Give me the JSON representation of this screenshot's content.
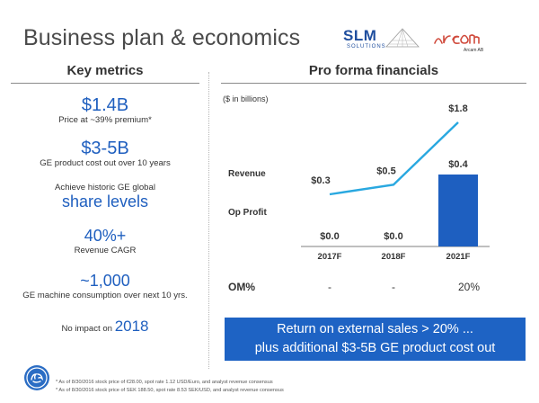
{
  "title": "Business plan & economics",
  "logos": {
    "slm": "SLM",
    "slm_sub": "SOLUTIONS",
    "arcam_sub": "Arcam AB"
  },
  "left_panel": {
    "heading": "Key metrics",
    "metrics": [
      {
        "value": "$1.4B",
        "caption": "Price at ~39% premium*"
      },
      {
        "value": "$3-5B",
        "caption": "GE product cost out over 10 years"
      },
      {
        "caption_top": "Achieve historic GE global",
        "value": "share levels"
      },
      {
        "value": "40%+",
        "caption": "Revenue CAGR"
      },
      {
        "value": "~1,000",
        "caption": "GE machine consumption over next 10 yrs."
      },
      {
        "prefix": "No impact on ",
        "value": "2018"
      }
    ]
  },
  "right_panel": {
    "heading": "Pro forma financials",
    "unit_note": "($ in billions)",
    "om_label": "OM%",
    "om_values": [
      "-",
      "-",
      "20%"
    ],
    "callout_line1": "Return on external sales > 20% ...",
    "callout_line2": "plus additional $3-5B GE product cost out"
  },
  "chart_data": {
    "type": "bar",
    "categories": [
      "2017F",
      "2018F",
      "2021F"
    ],
    "series": [
      {
        "name": "Revenue",
        "type": "line",
        "values": [
          0.3,
          0.5,
          1.8
        ],
        "labels": [
          "$0.3",
          "$0.5",
          "$1.8"
        ],
        "color": "#29a8e0"
      },
      {
        "name": "Op Profit",
        "type": "bar",
        "values": [
          0.0,
          0.0,
          0.4
        ],
        "labels": [
          "$0.0",
          "$0.0",
          "$0.4"
        ],
        "color": "#1e5fc0"
      }
    ],
    "title": "",
    "ylabel": "($ in billions)",
    "grid": false,
    "legend": "left"
  },
  "footnotes": [
    "* As of 8/30/2016 stock price of €28.00, spot rate 1.12 USD/Euro, and analyst revenue consensus",
    "* As of 8/30/2016 stock price of SEK 188.50, spot rate 8.53 SEK/USD, and analyst revenue consensus"
  ],
  "colors": {
    "accent": "#1f5fbf",
    "callout_bg": "#1e63c4",
    "line": "#29a8e0"
  }
}
